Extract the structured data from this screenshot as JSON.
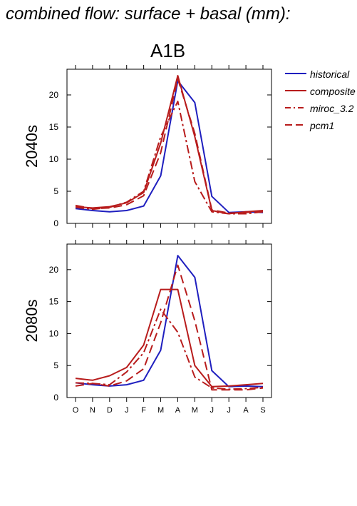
{
  "figure_title": "combined flow: surface + basal (mm):",
  "scenario": "A1B",
  "legend": [
    {
      "name": "historical",
      "color": "#1f1fbf",
      "dash": "solid"
    },
    {
      "name": "composite",
      "color": "#b81c1c",
      "dash": "solid"
    },
    {
      "name": "miroc_3.2",
      "color": "#b81c1c",
      "dash": "dashdot"
    },
    {
      "name": "pcm1",
      "color": "#b81c1c",
      "dash": "dashed"
    }
  ],
  "chart_data": [
    {
      "type": "line",
      "title": "",
      "ylabel": "2040s",
      "xlabel": "",
      "categories": [
        "O",
        "N",
        "D",
        "J",
        "F",
        "M",
        "A",
        "M",
        "J",
        "J",
        "A",
        "S"
      ],
      "ylim": [
        0,
        24
      ],
      "yticks": [
        0,
        5,
        10,
        15,
        20
      ],
      "series": [
        {
          "name": "historical",
          "values": [
            2.3,
            2.0,
            1.8,
            2.0,
            2.7,
            7.4,
            22.2,
            18.8,
            4.2,
            1.7,
            1.8,
            1.7
          ]
        },
        {
          "name": "composite",
          "values": [
            2.6,
            2.4,
            2.6,
            3.2,
            4.8,
            12.5,
            23.0,
            13.5,
            2.0,
            1.5,
            1.8,
            2.0
          ]
        },
        {
          "name": "miroc_3.2",
          "values": [
            2.5,
            2.2,
            2.5,
            3.3,
            5.0,
            13.5,
            19.0,
            6.5,
            1.8,
            1.5,
            1.5,
            1.8
          ]
        },
        {
          "name": "pcm1",
          "values": [
            2.8,
            2.3,
            2.4,
            2.9,
            4.3,
            11.0,
            22.5,
            14.0,
            2.1,
            1.6,
            1.7,
            1.9
          ]
        }
      ]
    },
    {
      "type": "line",
      "title": "",
      "ylabel": "2080s",
      "xlabel": "",
      "categories": [
        "O",
        "N",
        "D",
        "J",
        "F",
        "M",
        "A",
        "M",
        "J",
        "J",
        "A",
        "S"
      ],
      "ylim": [
        0,
        24
      ],
      "yticks": [
        0,
        5,
        10,
        15,
        20
      ],
      "series": [
        {
          "name": "historical",
          "values": [
            2.3,
            2.0,
            1.8,
            2.0,
            2.7,
            7.4,
            22.2,
            18.8,
            4.2,
            1.7,
            1.8,
            1.7
          ]
        },
        {
          "name": "composite",
          "values": [
            3.0,
            2.7,
            3.4,
            4.7,
            8.2,
            16.9,
            16.9,
            5.0,
            1.7,
            1.8,
            2.0,
            2.2
          ]
        },
        {
          "name": "miroc_3.2",
          "values": [
            2.3,
            2.2,
            2.0,
            4.0,
            7.0,
            13.8,
            10.2,
            3.2,
            1.5,
            1.3,
            1.4,
            1.6
          ]
        },
        {
          "name": "pcm1",
          "values": [
            1.8,
            2.2,
            1.8,
            2.6,
            4.5,
            11.7,
            20.7,
            12.0,
            1.2,
            1.2,
            1.2,
            1.5
          ]
        }
      ]
    }
  ]
}
